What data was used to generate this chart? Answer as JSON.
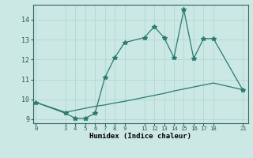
{
  "xlabel": "Humidex (Indice chaleur)",
  "background_color": "#cce8e4",
  "line1_x": [
    0,
    3,
    4,
    5,
    6,
    7,
    8,
    9,
    11,
    12,
    13,
    14,
    15,
    16,
    17,
    18,
    21
  ],
  "line1_y": [
    9.85,
    9.3,
    9.05,
    9.05,
    9.3,
    11.1,
    12.1,
    12.85,
    13.1,
    13.65,
    13.1,
    12.1,
    14.5,
    12.05,
    13.05,
    13.05,
    10.45
  ],
  "line2_x": [
    0,
    3,
    4,
    5,
    6,
    7,
    8,
    9,
    11,
    12,
    13,
    14,
    15,
    16,
    17,
    18,
    21
  ],
  "line2_y": [
    9.85,
    9.35,
    9.45,
    9.55,
    9.65,
    9.72,
    9.82,
    9.9,
    10.1,
    10.2,
    10.3,
    10.42,
    10.52,
    10.62,
    10.72,
    10.82,
    10.48
  ],
  "line_color": "#2a7a70",
  "marker": "*",
  "marker_size": 4,
  "ylim": [
    8.8,
    14.75
  ],
  "xlim": [
    -0.3,
    21.5
  ],
  "yticks": [
    9,
    10,
    11,
    12,
    13,
    14
  ],
  "xticks": [
    0,
    3,
    4,
    5,
    6,
    7,
    8,
    9,
    11,
    12,
    13,
    14,
    15,
    16,
    17,
    18,
    21
  ],
  "grid_color": "#b0d8d0",
  "figsize": [
    3.2,
    2.0
  ],
  "dpi": 100
}
